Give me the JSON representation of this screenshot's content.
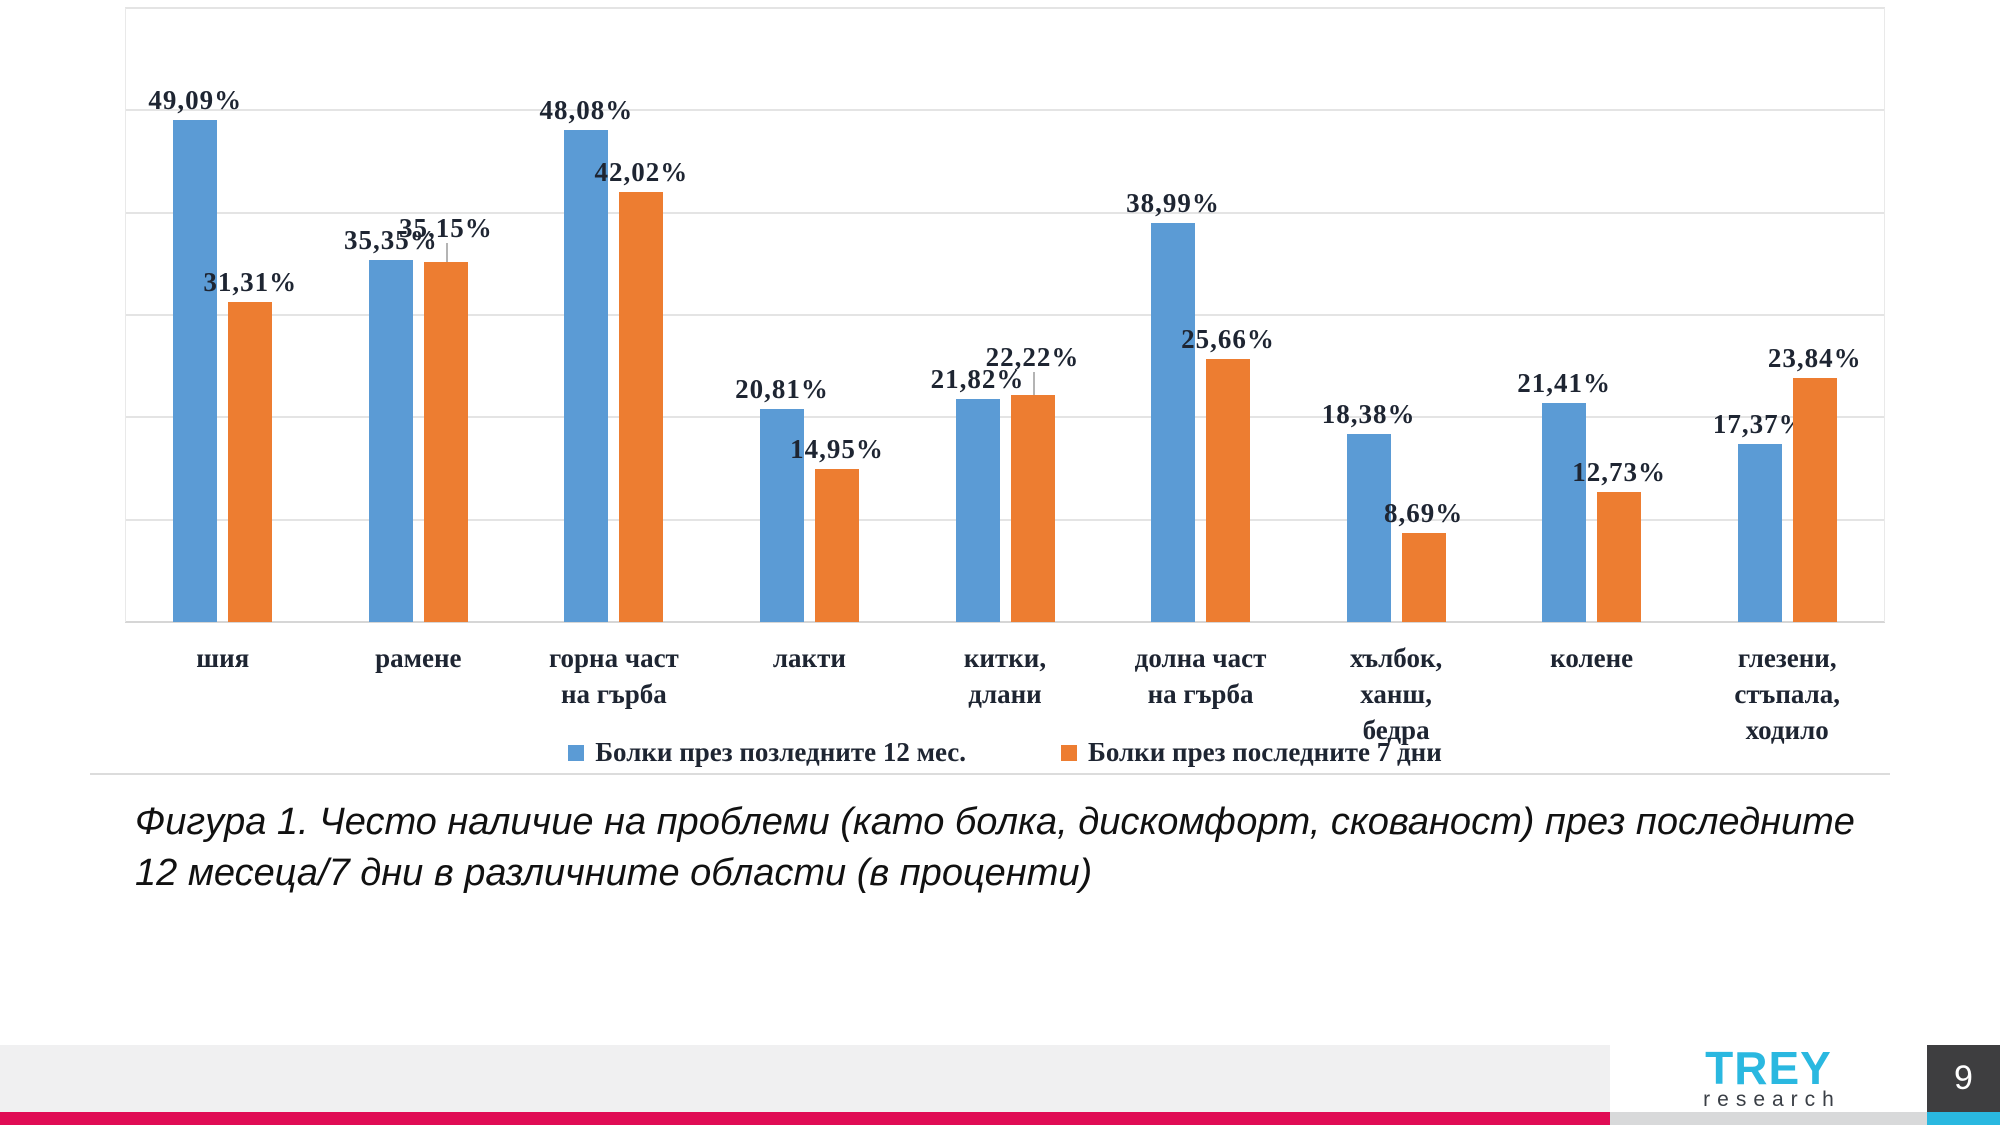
{
  "chart_data": {
    "type": "bar",
    "title": "",
    "xlabel": "",
    "ylabel": "",
    "categories": [
      "шия",
      "рамене",
      "горна част\nна гърба",
      "лакти",
      "китки,\nдлани",
      "долна част\nна гърба",
      "хълбок,\nханш,\nбедра",
      "колене",
      "глезени,\nстъпала,\nходило"
    ],
    "series": [
      {
        "name": "Болки през позледните 12 мес.",
        "color": "#5b9bd5",
        "values": [
          49.09,
          35.35,
          48.08,
          20.81,
          21.82,
          38.99,
          18.38,
          21.41,
          17.37
        ],
        "value_labels": [
          "49,09%",
          "35,35%",
          "48,08%",
          "20,81%",
          "21,82%",
          "38,99%",
          "18,38%",
          "21,41%",
          "17,37%"
        ]
      },
      {
        "name": "Болки през последните 7 дни",
        "color": "#ed7d31",
        "values": [
          31.31,
          35.15,
          42.02,
          14.95,
          22.22,
          25.66,
          8.69,
          12.73,
          23.84
        ],
        "value_labels": [
          "31,31%",
          "35,15%",
          "42,02%",
          "14,95%",
          "22,22%",
          "25,66%",
          "8,69%",
          "12,73%",
          "23,84%"
        ]
      }
    ],
    "ylim": [
      0,
      60
    ],
    "gridline_step": 10,
    "grid": true,
    "legend_position": "bottom",
    "value_label_format": "percent-comma-decimal",
    "raised_labels": [
      {
        "series": 1,
        "category": 1,
        "dy": -14
      },
      {
        "series": 1,
        "category": 4,
        "dy": -18
      }
    ]
  },
  "caption": {
    "line1": "Фигура 1. Често наличие на проблеми (като болка, дискомфорт, скованост) през последните",
    "line2": "12 месеца/7 дни в различните области (в проценти)"
  },
  "footer": {
    "logo_line1": "TREY",
    "logo_line2": "research",
    "page_number": "9",
    "accent_magenta": "#e00c55",
    "accent_cyan": "#2ab8e0",
    "band_gray": "#f0f0f1"
  }
}
